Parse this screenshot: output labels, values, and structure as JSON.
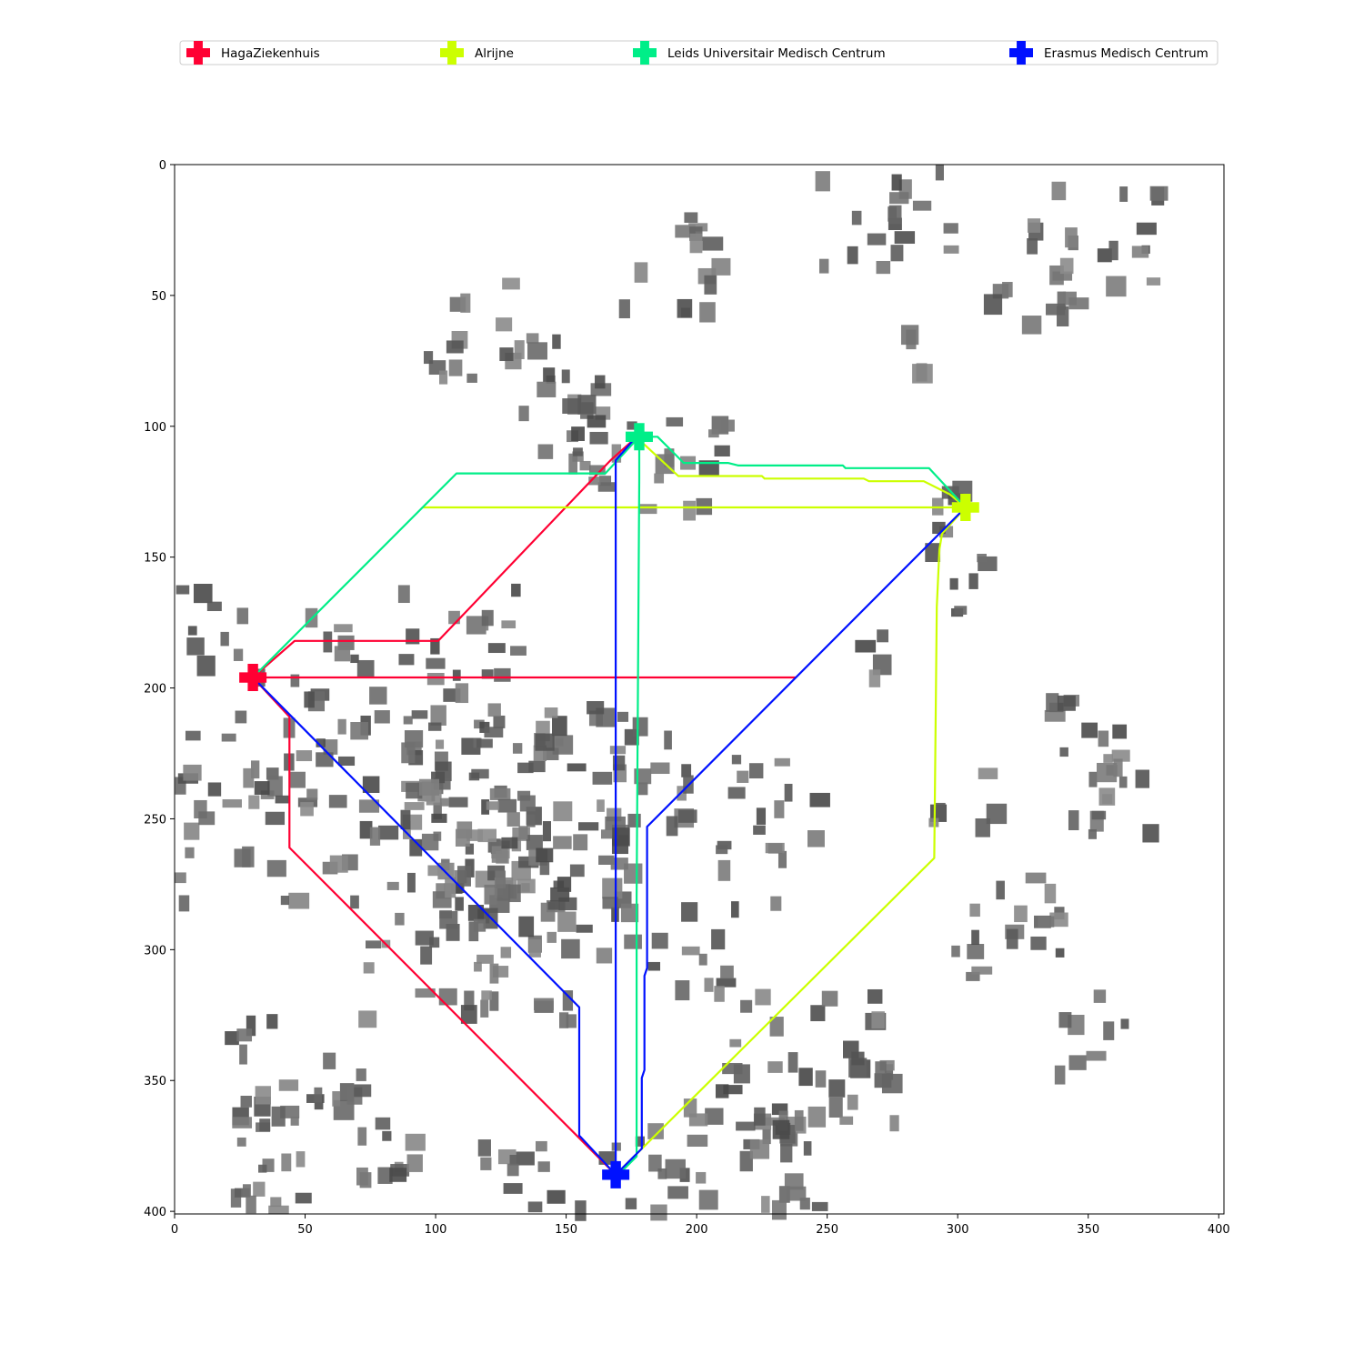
{
  "chart_data": {
    "type": "line",
    "title": "",
    "xlabel": "",
    "ylabel": "",
    "xlim": [
      0,
      402
    ],
    "ylim": [
      401,
      0
    ],
    "y_inverted": true,
    "x_ticks": [
      0,
      50,
      100,
      150,
      200,
      250,
      300,
      350,
      400
    ],
    "y_ticks": [
      0,
      50,
      100,
      150,
      200,
      250,
      300,
      350,
      400
    ],
    "grid": false,
    "legend_position": "top",
    "background": "grayscale building-density raster map",
    "hospitals": [
      {
        "name": "HagaZiekenhuis",
        "color": "#ff0033",
        "marker": "plus",
        "x": 30,
        "y": 196
      },
      {
        "name": "Alrijne",
        "color": "#ccff00",
        "marker": "plus",
        "x": 303,
        "y": 131
      },
      {
        "name": "Leids Universitair Medisch Centrum",
        "color": "#00ee88",
        "marker": "plus",
        "x": 178,
        "y": 104
      },
      {
        "name": "Erasmus Medisch Centrum",
        "color": "#0011ff",
        "marker": "plus",
        "x": 169,
        "y": 386
      }
    ],
    "series": [
      {
        "name": "HagaZiekenhuis",
        "color": "#ff0033",
        "routes": [
          [
            [
              30,
              196
            ],
            [
              46,
              182
            ],
            [
              101,
              182
            ],
            [
              167,
              113
            ],
            [
              176,
              105
            ]
          ],
          [
            [
              30,
              196
            ],
            [
              238,
              196
            ]
          ],
          [
            [
              30,
              196
            ],
            [
              44,
              211
            ],
            [
              44,
              261
            ],
            [
              169,
              386
            ]
          ]
        ]
      },
      {
        "name": "Alrijne",
        "color": "#ccff00",
        "routes": [
          [
            [
              303,
              131
            ],
            [
              95,
              131
            ]
          ],
          [
            [
              303,
              131
            ],
            [
              297,
              126
            ],
            [
              287,
              121
            ],
            [
              266,
              121
            ],
            [
              264,
              120
            ],
            [
              226,
              120
            ],
            [
              225,
              119
            ],
            [
              193,
              119
            ],
            [
              180,
              107
            ]
          ],
          [
            [
              303,
              131
            ],
            [
              294,
              141
            ],
            [
              293,
              147
            ],
            [
              292,
              169
            ],
            [
              291,
              265
            ],
            [
              169,
              386
            ]
          ]
        ]
      },
      {
        "name": "Leids Universitair Medisch Centrum",
        "color": "#00ee88",
        "routes": [
          [
            [
              178,
              104
            ],
            [
              165,
              118
            ],
            [
              108,
              118
            ],
            [
              30,
              196
            ]
          ],
          [
            [
              178,
              104
            ],
            [
              185,
              104
            ],
            [
              192,
              111
            ],
            [
              195,
              114
            ],
            [
              212,
              114
            ],
            [
              216,
              115
            ],
            [
              256,
              115
            ],
            [
              257,
              116
            ],
            [
              289,
              116
            ],
            [
              303,
              131
            ]
          ],
          [
            [
              178,
              104
            ],
            [
              178,
              120
            ],
            [
              177,
              280
            ],
            [
              177,
              379
            ],
            [
              171,
              385
            ]
          ]
        ]
      },
      {
        "name": "Erasmus Medisch Centrum",
        "color": "#0011ff",
        "routes": [
          [
            [
              169,
              386
            ],
            [
              169,
              113
            ],
            [
              176,
              105
            ]
          ],
          [
            [
              169,
              386
            ],
            [
              155,
              371
            ],
            [
              155,
              322
            ],
            [
              30,
              196
            ]
          ],
          [
            [
              169,
              386
            ],
            [
              179,
              376
            ],
            [
              179,
              349
            ],
            [
              180,
              346
            ],
            [
              180,
              310
            ],
            [
              181,
              307
            ],
            [
              181,
              253
            ],
            [
              303,
              131
            ]
          ]
        ]
      }
    ]
  }
}
